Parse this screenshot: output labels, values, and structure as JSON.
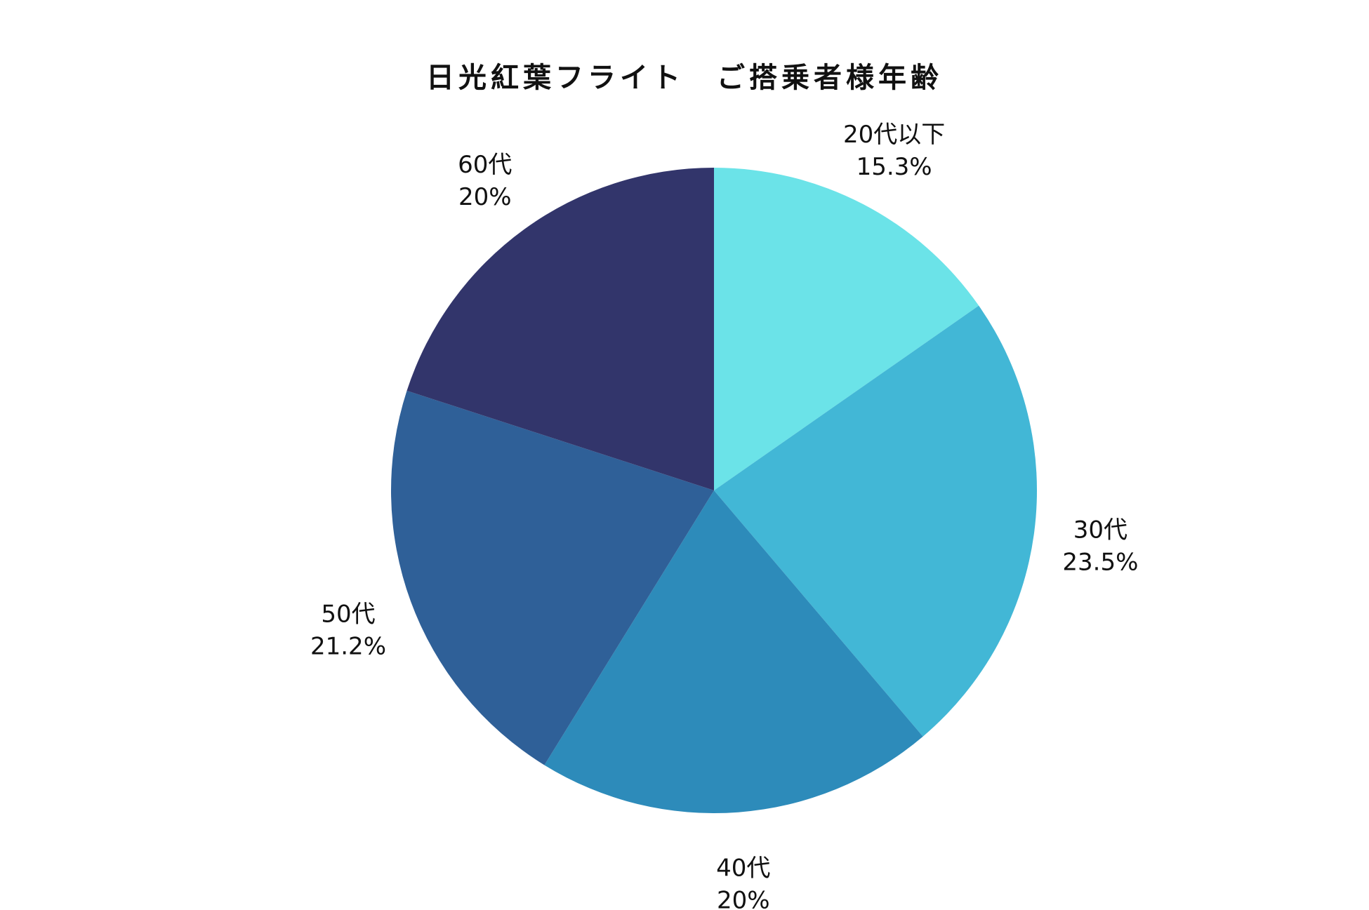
{
  "chart_data": {
    "type": "pie",
    "title": "日光紅葉フライト　ご搭乗者様年齢",
    "start_angle": "top",
    "direction": "clockwise",
    "legend": "none",
    "slices": [
      {
        "category": "20代以下",
        "value": 15.3,
        "value_label": "15.3%",
        "color": "#6BE3E8"
      },
      {
        "category": "30代",
        "value": 23.5,
        "value_label": "23.5%",
        "color": "#42B7D6"
      },
      {
        "category": "40代",
        "value": 20,
        "value_label": "20%",
        "color": "#2D8BBA"
      },
      {
        "category": "50代",
        "value": 21.2,
        "value_label": "21.2%",
        "color": "#2F6098"
      },
      {
        "category": "60代",
        "value": 20,
        "value_label": "20%",
        "color": "#32356B"
      }
    ]
  }
}
